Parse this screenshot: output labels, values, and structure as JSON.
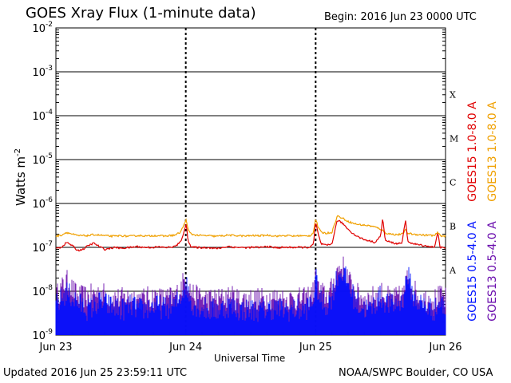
{
  "title": "GOES Xray Flux (1-minute data)",
  "begin_text": "Begin:  2016 Jun 23 0000 UTC",
  "updated_text": "Updated 2016 Jun 25 23:59:11 UTC",
  "credit_text": "NOAA/SWPC Boulder, CO USA",
  "chart_data": {
    "type": "line",
    "y_scale": "log",
    "ylim": [
      1e-09,
      0.01
    ],
    "xlim_hours": [
      0,
      72
    ],
    "ylabel": "Watts m",
    "ylabel_exponent": "-2",
    "xlabel": "Universal Time",
    "grid": "horizontal at each decade",
    "x_ticks": [
      {
        "label": "Jun 23",
        "hour": 0
      },
      {
        "label": "Jun 24",
        "hour": 24
      },
      {
        "label": "Jun 25",
        "hour": 48
      },
      {
        "label": "Jun 26",
        "hour": 72
      }
    ],
    "y_ticks": [
      {
        "base": "10",
        "exp": "-2",
        "value": 0.01
      },
      {
        "base": "10",
        "exp": "-3",
        "value": 0.001
      },
      {
        "base": "10",
        "exp": "-4",
        "value": 0.0001
      },
      {
        "base": "10",
        "exp": "-5",
        "value": 1e-05
      },
      {
        "base": "10",
        "exp": "-6",
        "value": 1e-06
      },
      {
        "base": "10",
        "exp": "-7",
        "value": 1e-07
      },
      {
        "base": "10",
        "exp": "-8",
        "value": 1e-08
      },
      {
        "base": "10",
        "exp": "-9",
        "value": 1e-09
      }
    ],
    "flare_classes": [
      {
        "label": "X",
        "value": 0.000316
      },
      {
        "label": "M",
        "value": 3.16e-05
      },
      {
        "label": "C",
        "value": 3.16e-06
      },
      {
        "label": "B",
        "value": 3.16e-07
      },
      {
        "label": "A",
        "value": 3.16e-08
      }
    ],
    "series": [
      {
        "name": "GOES15 1.0-8.0 A",
        "color": "#e00000",
        "style": "line",
        "points": [
          [
            0,
            9.5e-08
          ],
          [
            1,
            1e-07
          ],
          [
            2,
            1.3e-07
          ],
          [
            3,
            1.1e-07
          ],
          [
            4,
            8.5e-08
          ],
          [
            5,
            9e-08
          ],
          [
            6,
            1.1e-07
          ],
          [
            7,
            1.25e-07
          ],
          [
            8,
            1.05e-07
          ],
          [
            9,
            9e-08
          ],
          [
            10,
            9.5e-08
          ],
          [
            11,
            1e-07
          ],
          [
            12,
            9.5e-08
          ],
          [
            13,
            9.8e-08
          ],
          [
            14,
            1e-07
          ],
          [
            15,
            1.05e-07
          ],
          [
            16,
            1e-07
          ],
          [
            17,
            1e-07
          ],
          [
            18,
            1e-07
          ],
          [
            19,
            1.02e-07
          ],
          [
            20,
            1e-07
          ],
          [
            21,
            1e-07
          ],
          [
            22,
            1.05e-07
          ],
          [
            23,
            1.3e-07
          ],
          [
            23.8,
            2.5e-07
          ],
          [
            24.1,
            3.5e-07
          ],
          [
            24.4,
            1.5e-07
          ],
          [
            25,
            1e-07
          ],
          [
            26,
            1e-07
          ],
          [
            27,
            9.8e-08
          ],
          [
            28,
            1e-07
          ],
          [
            29,
            9.5e-08
          ],
          [
            30,
            9.5e-08
          ],
          [
            31,
            1e-07
          ],
          [
            32,
            1.05e-07
          ],
          [
            33,
            1e-07
          ],
          [
            34,
            1e-07
          ],
          [
            35,
            9.8e-08
          ],
          [
            36,
            1e-07
          ],
          [
            37,
            1e-07
          ],
          [
            38,
            1e-07
          ],
          [
            39,
            1.05e-07
          ],
          [
            40,
            1e-07
          ],
          [
            41,
            9.8e-08
          ],
          [
            42,
            1e-07
          ],
          [
            43,
            1e-07
          ],
          [
            44,
            1e-07
          ],
          [
            45,
            1e-07
          ],
          [
            46,
            1e-07
          ],
          [
            47,
            1e-07
          ],
          [
            47.6,
            1.2e-07
          ],
          [
            48,
            3.8e-07
          ],
          [
            48.4,
            2.2e-07
          ],
          [
            49,
            1.2e-07
          ],
          [
            50,
            1.1e-07
          ],
          [
            51,
            1.2e-07
          ],
          [
            52,
            4.2e-07
          ],
          [
            53,
            3.5e-07
          ],
          [
            54,
            2.6e-07
          ],
          [
            55,
            2e-07
          ],
          [
            56,
            1.7e-07
          ],
          [
            57,
            1.5e-07
          ],
          [
            58,
            1.4e-07
          ],
          [
            59,
            1.3e-07
          ],
          [
            60,
            1.8e-07
          ],
          [
            60.4,
            4.8e-07
          ],
          [
            60.8,
            1.6e-07
          ],
          [
            61,
            1.4e-07
          ],
          [
            62,
            1.3e-07
          ],
          [
            63,
            1.2e-07
          ],
          [
            64,
            1.3e-07
          ],
          [
            64.6,
            4.3e-07
          ],
          [
            65,
            1.4e-07
          ],
          [
            66,
            1.2e-07
          ],
          [
            67,
            1.15e-07
          ],
          [
            68,
            1.1e-07
          ],
          [
            69,
            1.05e-07
          ],
          [
            70,
            1e-07
          ],
          [
            70.6,
            2.3e-07
          ],
          [
            71,
            1e-07
          ],
          [
            72,
            9.5e-08
          ]
        ]
      },
      {
        "name": "GOES13 1.0-8.0 A",
        "color": "#f0a000",
        "style": "line",
        "points": [
          [
            0,
            1.8e-07
          ],
          [
            1,
            1.9e-07
          ],
          [
            2,
            2.2e-07
          ],
          [
            3,
            2e-07
          ],
          [
            4,
            1.85e-07
          ],
          [
            5,
            1.85e-07
          ],
          [
            6,
            1.85e-07
          ],
          [
            7,
            1.95e-07
          ],
          [
            8,
            1.9e-07
          ],
          [
            9,
            1.85e-07
          ],
          [
            10,
            1.8e-07
          ],
          [
            11,
            1.8e-07
          ],
          [
            12,
            1.85e-07
          ],
          [
            13,
            1.8e-07
          ],
          [
            14,
            1.8e-07
          ],
          [
            15,
            1.85e-07
          ],
          [
            16,
            1.85e-07
          ],
          [
            17,
            1.8e-07
          ],
          [
            18,
            1.85e-07
          ],
          [
            19,
            1.85e-07
          ],
          [
            20,
            1.8e-07
          ],
          [
            21,
            1.85e-07
          ],
          [
            22,
            1.9e-07
          ],
          [
            23,
            2.2e-07
          ],
          [
            23.8,
            3.5e-07
          ],
          [
            24.1,
            4.5e-07
          ],
          [
            24.4,
            2.5e-07
          ],
          [
            25,
            2e-07
          ],
          [
            26,
            1.9e-07
          ],
          [
            27,
            1.85e-07
          ],
          [
            28,
            1.85e-07
          ],
          [
            29,
            1.8e-07
          ],
          [
            30,
            1.8e-07
          ],
          [
            31,
            1.85e-07
          ],
          [
            32,
            1.9e-07
          ],
          [
            33,
            1.85e-07
          ],
          [
            34,
            1.85e-07
          ],
          [
            35,
            1.8e-07
          ],
          [
            36,
            1.85e-07
          ],
          [
            37,
            1.85e-07
          ],
          [
            38,
            1.85e-07
          ],
          [
            39,
            1.9e-07
          ],
          [
            40,
            1.85e-07
          ],
          [
            41,
            1.8e-07
          ],
          [
            42,
            1.85e-07
          ],
          [
            43,
            1.85e-07
          ],
          [
            44,
            1.8e-07
          ],
          [
            45,
            1.85e-07
          ],
          [
            46,
            1.8e-07
          ],
          [
            47,
            1.85e-07
          ],
          [
            47.6,
            2.2e-07
          ],
          [
            48,
            4.6e-07
          ],
          [
            48.4,
            3e-07
          ],
          [
            49,
            2.2e-07
          ],
          [
            50,
            2.1e-07
          ],
          [
            51,
            2.2e-07
          ],
          [
            52,
            5.2e-07
          ],
          [
            53,
            4.6e-07
          ],
          [
            54,
            3.9e-07
          ],
          [
            55,
            3.5e-07
          ],
          [
            56,
            3.3e-07
          ],
          [
            57,
            3.2e-07
          ],
          [
            58,
            3.1e-07
          ],
          [
            59,
            2.9e-07
          ],
          [
            60,
            2.6e-07
          ],
          [
            60.6,
            2.3e-07
          ],
          [
            61,
            2.1e-07
          ],
          [
            62,
            2e-07
          ],
          [
            63,
            1.95e-07
          ],
          [
            64,
            2e-07
          ],
          [
            64.6,
            2.5e-07
          ],
          [
            65,
            2.1e-07
          ],
          [
            66,
            2e-07
          ],
          [
            67,
            1.95e-07
          ],
          [
            68,
            1.9e-07
          ],
          [
            69,
            1.9e-07
          ],
          [
            70,
            1.85e-07
          ],
          [
            70.6,
            2.2e-07
          ],
          [
            71,
            1.85e-07
          ],
          [
            72,
            1.8e-07
          ]
        ]
      },
      {
        "name": "GOES15 0.5-4.0 A",
        "color": "#0010ff",
        "style": "noise",
        "points": [
          [
            0,
            2.5e-09
          ],
          [
            2,
            5e-09
          ],
          [
            4,
            3e-09
          ],
          [
            6,
            2e-09
          ],
          [
            8,
            3e-09
          ],
          [
            10,
            2.5e-09
          ],
          [
            12,
            2e-09
          ],
          [
            14,
            2.5e-09
          ],
          [
            16,
            2e-09
          ],
          [
            18,
            2.5e-09
          ],
          [
            20,
            2.2e-09
          ],
          [
            22,
            2.5e-09
          ],
          [
            23,
            4e-09
          ],
          [
            24,
            8e-09
          ],
          [
            25,
            3e-09
          ],
          [
            26,
            2.5e-09
          ],
          [
            28,
            2e-09
          ],
          [
            30,
            2e-09
          ],
          [
            32,
            2.5e-09
          ],
          [
            34,
            2e-09
          ],
          [
            36,
            2e-09
          ],
          [
            38,
            2e-09
          ],
          [
            40,
            2.2e-09
          ],
          [
            42,
            2e-09
          ],
          [
            44,
            2e-09
          ],
          [
            46,
            2e-09
          ],
          [
            47.5,
            3e-09
          ],
          [
            48,
            1.1e-08
          ],
          [
            48.5,
            5e-09
          ],
          [
            49,
            3e-09
          ],
          [
            50,
            2.5e-09
          ],
          [
            51,
            4e-09
          ],
          [
            52,
            1.2e-08
          ],
          [
            53,
            1.5e-08
          ],
          [
            54,
            8e-09
          ],
          [
            55,
            4e-09
          ],
          [
            56,
            2.5e-09
          ],
          [
            58,
            2e-09
          ],
          [
            60,
            4e-09
          ],
          [
            61,
            3e-09
          ],
          [
            62,
            2.5e-09
          ],
          [
            64,
            3e-09
          ],
          [
            65,
            1.4e-08
          ],
          [
            66,
            4e-09
          ],
          [
            67,
            3e-09
          ],
          [
            68,
            2.5e-09
          ],
          [
            70,
            2e-09
          ],
          [
            71,
            3e-09
          ],
          [
            72,
            2e-09
          ]
        ]
      },
      {
        "name": "GOES13 0.5-4.0 A",
        "color": "#6a0dad",
        "style": "noise",
        "points": [
          [
            0,
            4e-09
          ],
          [
            1,
            6e-09
          ],
          [
            2,
            9e-09
          ],
          [
            3,
            6e-09
          ],
          [
            4,
            4e-09
          ],
          [
            6,
            4e-09
          ],
          [
            8,
            5e-09
          ],
          [
            10,
            4e-09
          ],
          [
            12,
            3.5e-09
          ],
          [
            14,
            4e-09
          ],
          [
            16,
            3.5e-09
          ],
          [
            18,
            4e-09
          ],
          [
            20,
            3.5e-09
          ],
          [
            22,
            4e-09
          ],
          [
            23,
            6e-09
          ],
          [
            24,
            1.1e-08
          ],
          [
            25,
            5e-09
          ],
          [
            26,
            4e-09
          ],
          [
            28,
            3.5e-09
          ],
          [
            30,
            3.5e-09
          ],
          [
            32,
            4e-09
          ],
          [
            34,
            3.5e-09
          ],
          [
            36,
            3.5e-09
          ],
          [
            38,
            3.5e-09
          ],
          [
            40,
            3.8e-09
          ],
          [
            42,
            3.5e-09
          ],
          [
            44,
            3.5e-09
          ],
          [
            46,
            3.5e-09
          ],
          [
            47.5,
            5e-09
          ],
          [
            48,
            1e-08
          ],
          [
            48.5,
            6e-09
          ],
          [
            49,
            5e-09
          ],
          [
            50,
            4e-09
          ],
          [
            51,
            6e-09
          ],
          [
            52,
            1.6e-08
          ],
          [
            53,
            2e-08
          ],
          [
            54,
            1e-08
          ],
          [
            55,
            6e-09
          ],
          [
            56,
            4e-09
          ],
          [
            58,
            3.5e-09
          ],
          [
            60,
            5e-09
          ],
          [
            61,
            4e-09
          ],
          [
            62,
            3.5e-09
          ],
          [
            64,
            4e-09
          ],
          [
            65,
            1.1e-08
          ],
          [
            66,
            6e-09
          ],
          [
            67,
            4e-09
          ],
          [
            68,
            3.5e-09
          ],
          [
            70,
            3.5e-09
          ],
          [
            71,
            4e-09
          ],
          [
            72,
            3.5e-09
          ]
        ]
      }
    ]
  }
}
